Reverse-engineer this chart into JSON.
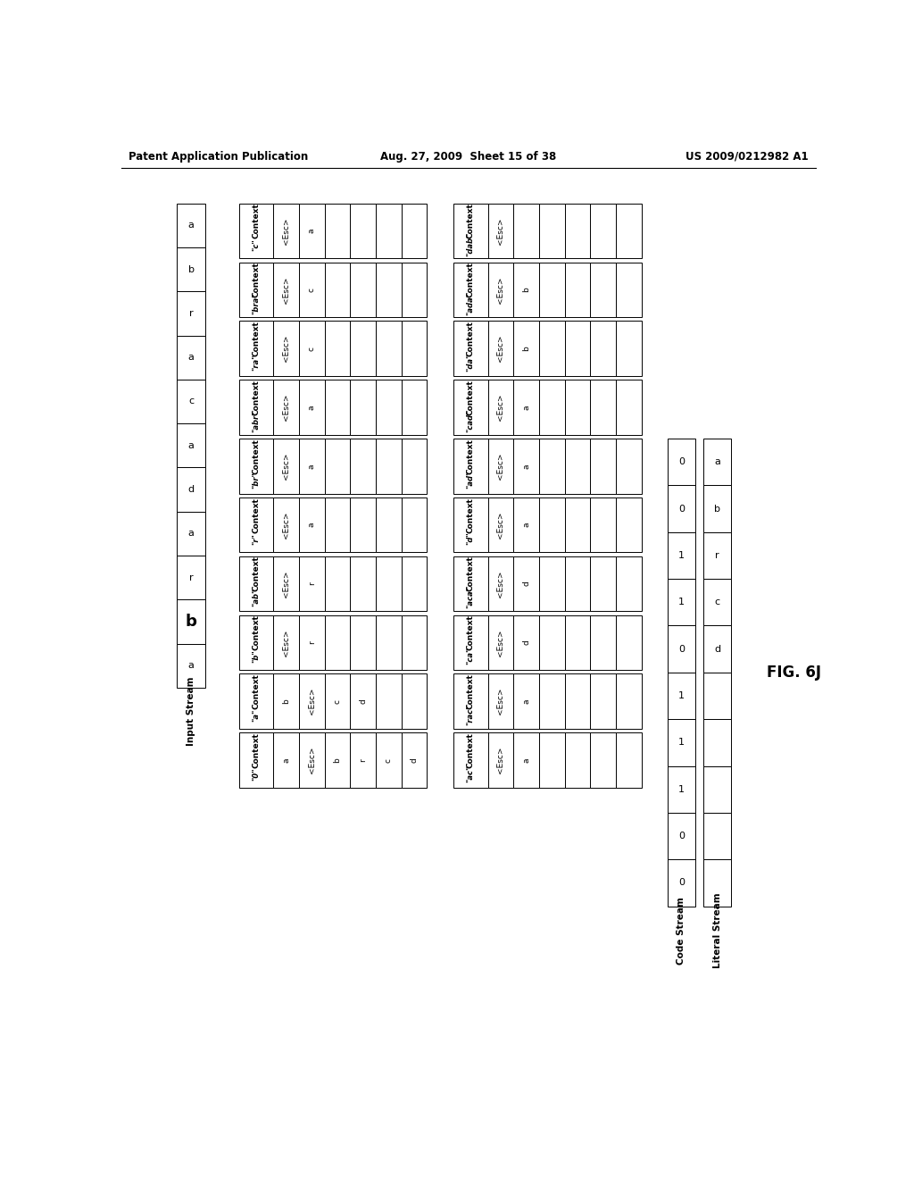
{
  "header_left": "Patent Application Publication",
  "header_mid": "Aug. 27, 2009  Sheet 15 of 38",
  "header_right": "US 2009/0212982 A1",
  "fig_label": "FIG. 6J",
  "input_stream_label": "Input Stream",
  "input_stream_cells": [
    "a",
    "b",
    "r",
    "a",
    "c",
    "a",
    "d",
    "a",
    "r",
    "b",
    "a"
  ],
  "input_bold_index": 9,
  "left_contexts": [
    {
      "name": "\"c\"",
      "cells": [
        "<Esc>",
        "a",
        "",
        "",
        "",
        ""
      ]
    },
    {
      "name": "\"bra\"",
      "cells": [
        "<Esc>",
        "c",
        "",
        "",
        "",
        ""
      ]
    },
    {
      "name": "\"ra\"",
      "cells": [
        "<Esc>",
        "c",
        "",
        "",
        "",
        ""
      ]
    },
    {
      "name": "\"abr\"",
      "cells": [
        "<Esc>",
        "a",
        "",
        "",
        "",
        ""
      ]
    },
    {
      "name": "\"br\"",
      "cells": [
        "<Esc>",
        "a",
        "",
        "",
        "",
        ""
      ]
    },
    {
      "name": "\"r\"",
      "cells": [
        "<Esc>",
        "a",
        "",
        "",
        "",
        ""
      ]
    },
    {
      "name": "\"ab\"",
      "cells": [
        "<Esc>",
        "r",
        "",
        "",
        "",
        ""
      ]
    },
    {
      "name": "\"b\"",
      "cells": [
        "<Esc>",
        "r",
        "",
        "",
        "",
        ""
      ]
    },
    {
      "name": "\"a\"",
      "cells": [
        "b",
        "<Esc>",
        "c",
        "d",
        "",
        ""
      ]
    },
    {
      "name": "\"0\"",
      "cells": [
        "a",
        "<Esc>",
        "b",
        "r",
        "c",
        "d"
      ]
    }
  ],
  "right_contexts": [
    {
      "name": "\"dab\"",
      "cells": [
        "<Esc>",
        "",
        "",
        "",
        "",
        ""
      ]
    },
    {
      "name": "\"ada\"",
      "cells": [
        "<Esc>",
        "b",
        "",
        "",
        "",
        ""
      ]
    },
    {
      "name": "\"da\"",
      "cells": [
        "<Esc>",
        "b",
        "",
        "",
        "",
        ""
      ]
    },
    {
      "name": "\"cad\"",
      "cells": [
        "<Esc>",
        "a",
        "",
        "",
        "",
        ""
      ]
    },
    {
      "name": "\"ad\"",
      "cells": [
        "<Esc>",
        "a",
        "",
        "",
        "",
        ""
      ]
    },
    {
      "name": "\"d\"",
      "cells": [
        "<Esc>",
        "a",
        "",
        "",
        "",
        ""
      ]
    },
    {
      "name": "\"aca\"",
      "cells": [
        "<Esc>",
        "d",
        "",
        "",
        "",
        ""
      ]
    },
    {
      "name": "\"ca\"",
      "cells": [
        "<Esc>",
        "d",
        "",
        "",
        "",
        ""
      ]
    },
    {
      "name": "\"rac\"",
      "cells": [
        "<Esc>",
        "a",
        "",
        "",
        "",
        ""
      ]
    },
    {
      "name": "\"ac\"",
      "cells": [
        "<Esc>",
        "a",
        "",
        "",
        "",
        ""
      ]
    }
  ],
  "code_stream_label": "Code Stream",
  "code_stream_values": [
    "0",
    "0",
    "1",
    "1",
    "0",
    "1",
    "1",
    "1",
    "0",
    "0"
  ],
  "literal_stream_label": "Literal Stream",
  "literal_stream_values": [
    "a",
    "b",
    "r",
    "c",
    "d",
    "",
    "",
    "",
    "",
    ""
  ],
  "n_streams": 10
}
